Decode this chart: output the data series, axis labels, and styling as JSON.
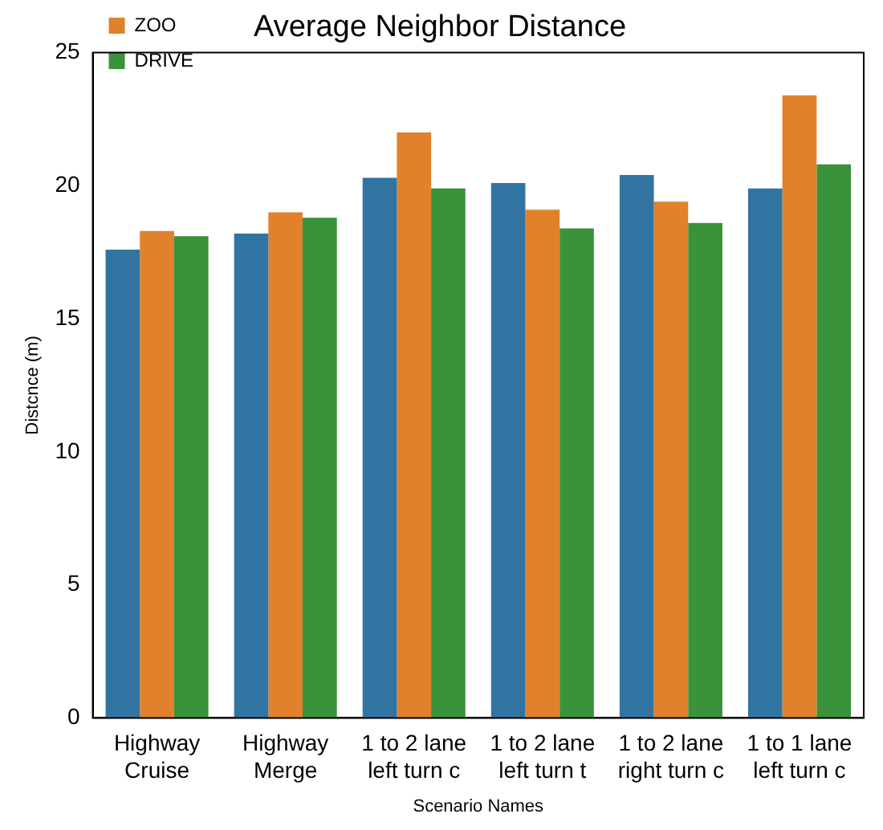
{
  "chart_data": {
    "type": "bar",
    "title": "Average Neighbor Distance",
    "xlabel": "Scenario Names",
    "ylabel": "Distcnce (m)",
    "categories": [
      "Highway\nCruise",
      "Highway\nMerge",
      "1 to 2 lane\nleft turn c",
      "1 to 2 lane\nleft turn t",
      "1 to 2 lane\nright turn c",
      "1 to 1 lane\nleft turn c"
    ],
    "series": [
      {
        "color": "#3274a1",
        "values": [
          17.6,
          18.2,
          20.3,
          20.1,
          20.4,
          19.9
        ]
      },
      {
        "name": "ZOO",
        "color": "#e1812c",
        "values": [
          18.3,
          19.0,
          22.0,
          19.1,
          19.4,
          23.4
        ]
      },
      {
        "name": "DRIVE",
        "color": "#3a923a",
        "values": [
          18.1,
          18.8,
          19.9,
          18.4,
          18.6,
          20.8
        ]
      }
    ],
    "ylim": [
      0,
      25
    ],
    "yticks": [
      0,
      5,
      10,
      15,
      20,
      25
    ],
    "grid": false,
    "legend": "top left"
  }
}
